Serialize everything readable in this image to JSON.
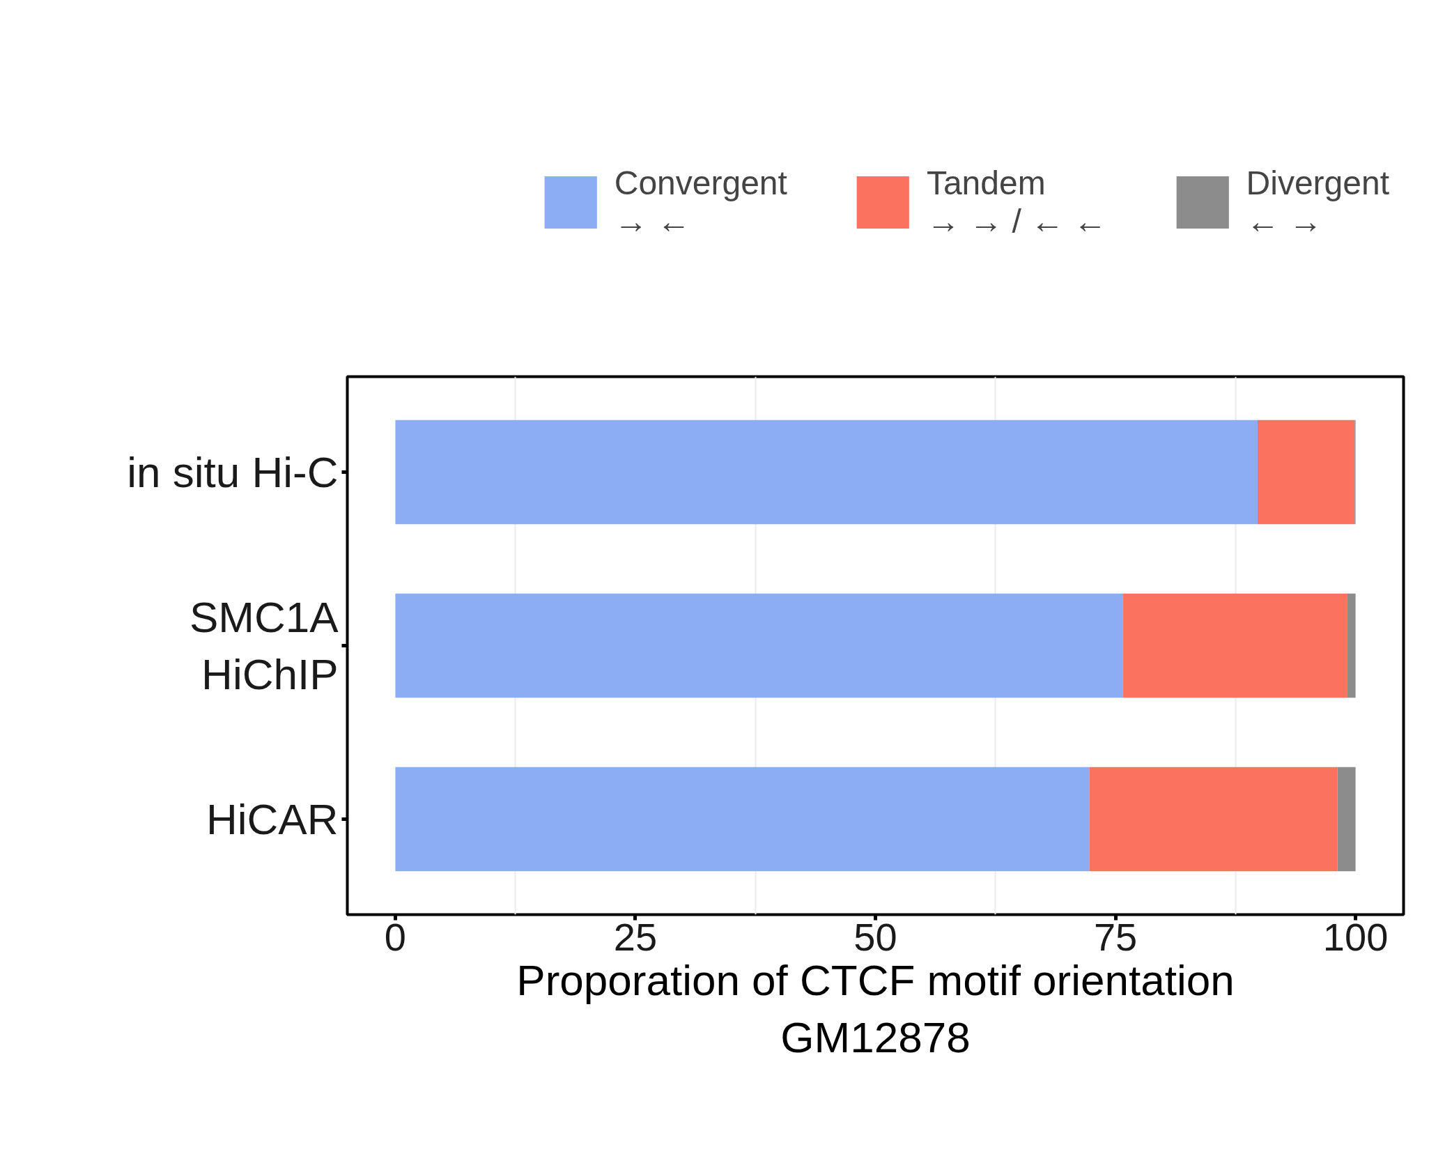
{
  "chart_data": {
    "type": "bar",
    "orientation": "horizontal",
    "stacked": true,
    "categories": [
      "in situ Hi-C",
      "SMC1A\nHiChIP",
      "HiCAR"
    ],
    "series": [
      {
        "name": "Convergent",
        "color": "#8aadf4",
        "values": [
          89.8,
          75.8,
          72.3
        ]
      },
      {
        "name": "Tandem",
        "color": "#fb735f",
        "values": [
          10.1,
          23.3,
          25.8
        ]
      },
      {
        "name": "Divergent",
        "color": "#8c8c8c",
        "values": [
          0.1,
          0.9,
          1.9
        ]
      }
    ],
    "annotations": [
      "→ ←",
      "→ → / ← ←",
      "← →"
    ],
    "xlabel": "Proporation of CTCF motif orientation\nGM12878",
    "xlim": [
      -5,
      105
    ],
    "xticks": [
      0,
      25,
      50,
      75,
      100
    ],
    "grid": "x",
    "legend": "top"
  }
}
